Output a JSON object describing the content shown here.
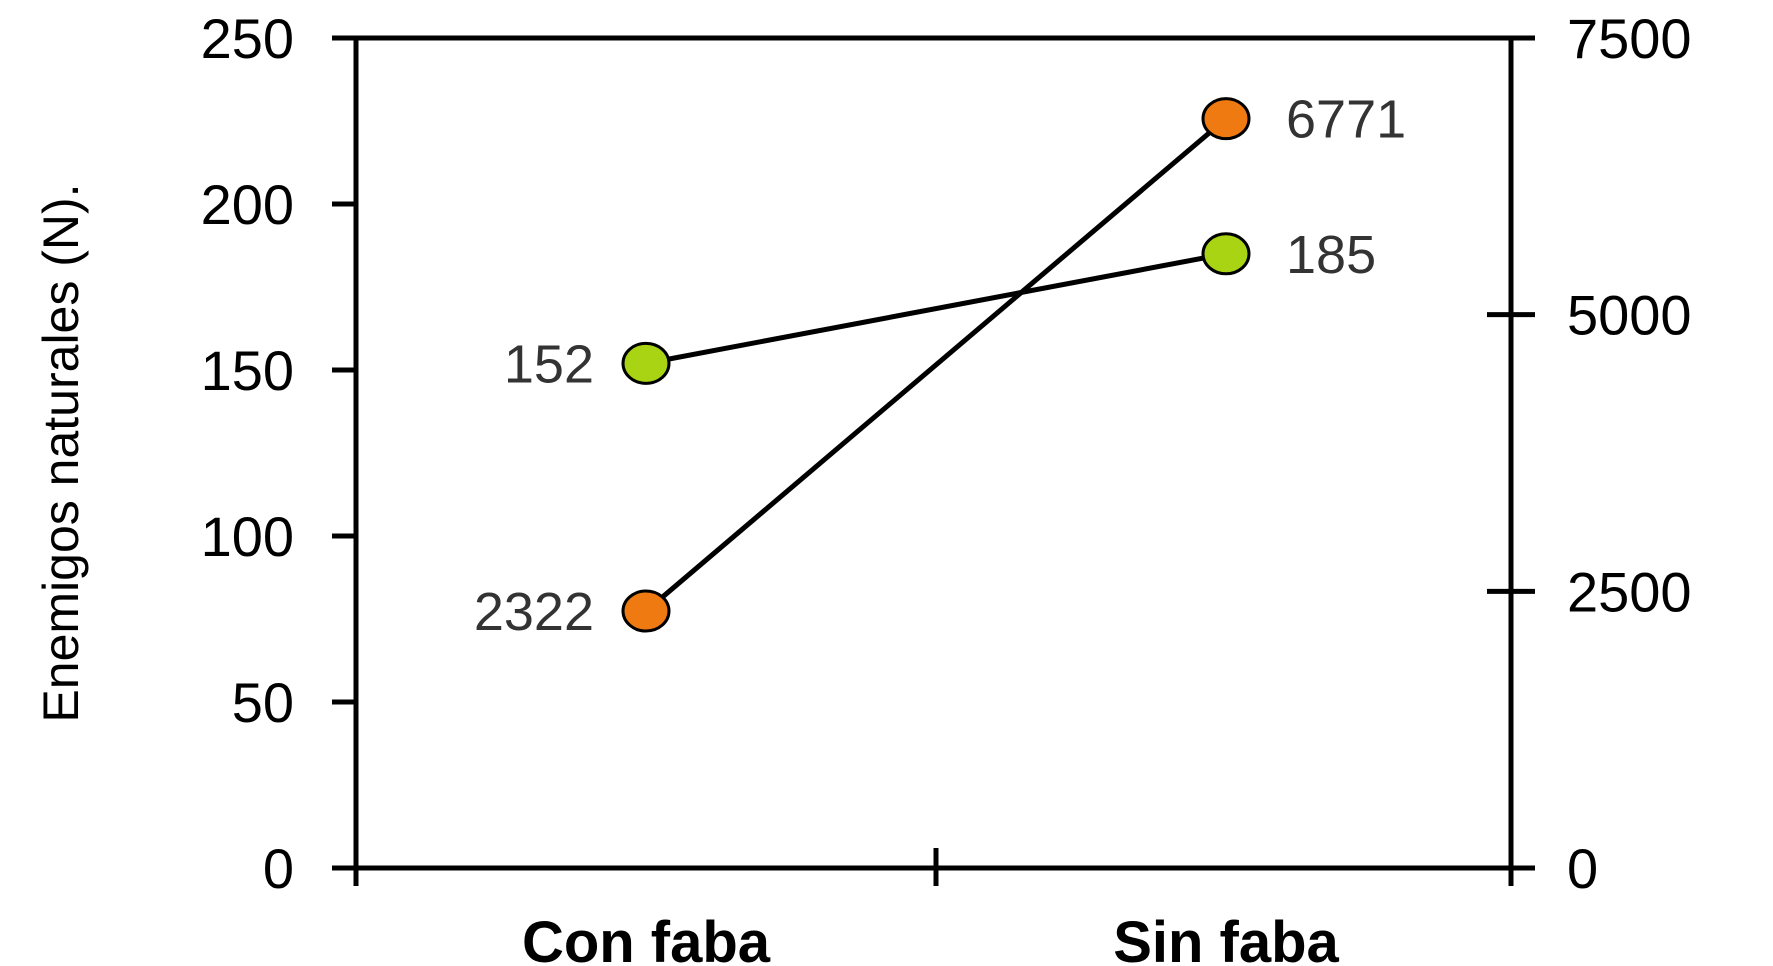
{
  "chart_data": {
    "type": "line",
    "categories": [
      "Con faba",
      "Sin faba"
    ],
    "ylabel": "Enemigos naturales (N).",
    "y_left": {
      "range": [
        0,
        250
      ],
      "ticks": [
        0,
        50,
        100,
        150,
        200,
        250
      ],
      "tick_labels": [
        "0",
        "50",
        "100",
        "150",
        "200",
        "250"
      ]
    },
    "y_right": {
      "range": [
        0,
        7500
      ],
      "ticks": [
        0,
        2500,
        5000,
        7500
      ],
      "tick_labels": [
        "0",
        "2500",
        "5000",
        "7500"
      ]
    },
    "series": [
      {
        "axis": "left",
        "color": "#a8d414",
        "values": [
          152,
          185
        ],
        "labels": [
          "152",
          "185"
        ]
      },
      {
        "axis": "right",
        "color": "#f07a12",
        "values": [
          2322,
          6771
        ],
        "labels": [
          "2322",
          "6771"
        ]
      }
    ],
    "grid": false,
    "legend": "none"
  }
}
